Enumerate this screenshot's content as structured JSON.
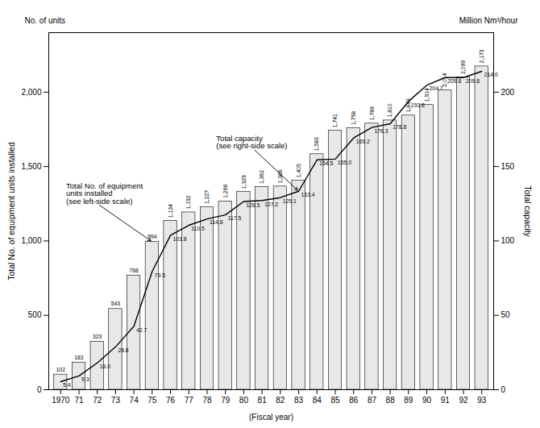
{
  "chart_data": {
    "type": "bar",
    "xlabel": "(Fiscal year)",
    "ylabel": "Total No. of equipment units installed",
    "y2label": "Total capacity",
    "y_unit_label": "No. of units",
    "y2_unit_label": "Million Nm³/hour",
    "categories": [
      "1970",
      "71",
      "72",
      "73",
      "74",
      "75",
      "76",
      "77",
      "78",
      "79",
      "80",
      "81",
      "82",
      "83",
      "84",
      "85",
      "86",
      "87",
      "88",
      "89",
      "90",
      "91",
      "92",
      "93"
    ],
    "ylim": [
      0,
      2400
    ],
    "yticks": [
      0,
      500,
      {
        "value": 1000,
        "label": "1,000"
      },
      {
        "value": 1500,
        "label": "1,500"
      },
      {
        "value": 2000,
        "label": "2,000"
      }
    ],
    "y2lim": [
      0,
      240
    ],
    "y2ticks": [
      0,
      50,
      100,
      150,
      200
    ],
    "grid": false,
    "data_labels": true,
    "series": [
      {
        "type": "bar",
        "color": "#e8e8e8",
        "values": [
          102,
          183,
          323,
          543,
          768,
          994,
          1134,
          1192,
          1227,
          1266,
          1329,
          1362,
          1366,
          1405,
          1583,
          1741,
          1758,
          1789,
          1810,
          1843,
          1914,
          2014,
          2099,
          2173
        ],
        "value_labels": [
          "102",
          "183",
          "323",
          "543",
          "768",
          "994",
          "1,134",
          "1,192",
          "1,227",
          "1,266",
          "1,329",
          "1,362",
          "1,366",
          "1,405",
          "1,583",
          "1,741",
          "1,758",
          "1,789",
          "1,810",
          "1,843",
          "1,914",
          "2,014",
          "2,099",
          "2,173"
        ]
      },
      {
        "type": "line",
        "axis": "y2",
        "color": "#000000",
        "values": [
          5.4,
          9.3,
          18.0,
          28.8,
          42.7,
          79.5,
          103.8,
          110.5,
          114.8,
          117.5,
          126.5,
          127.2,
          129.1,
          133.4,
          154.5,
          155.0,
          169.2,
          176.3,
          178.8,
          193.8,
          204.7,
          209.8,
          209.8,
          214.0
        ],
        "value_labels": [
          "5.4",
          "9.3",
          "18.0",
          "28.8",
          "42.7",
          "79.5",
          "103.8",
          "110.5",
          "114.8",
          "117.5",
          "126.5",
          "127.2",
          "129.1",
          "133.4",
          "154.5",
          "155.0",
          "169.2",
          "176.3",
          "178.8",
          "193.8",
          "204.7",
          "209.8",
          "209.8",
          "214.0"
        ]
      }
    ],
    "annotations": [
      {
        "text": "Total capacity\n(see right-side scale)",
        "category": "83",
        "axis": "y2"
      },
      {
        "text": "Total No. of equipment\nunits installed\n(see left-side scale)",
        "category": "75",
        "axis": "y"
      }
    ]
  }
}
